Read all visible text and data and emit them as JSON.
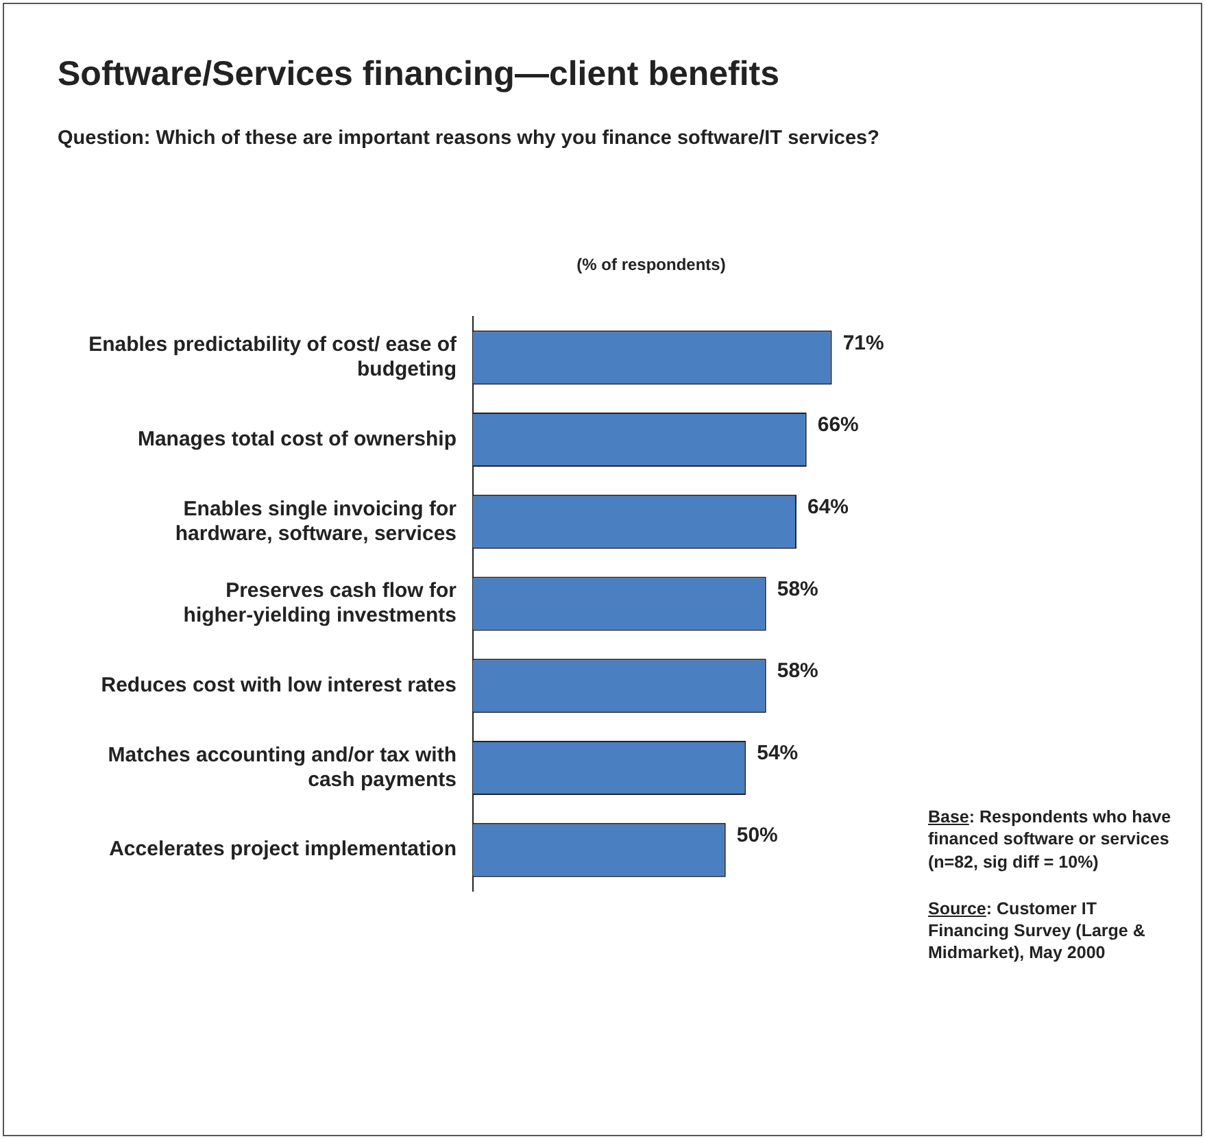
{
  "chart_data": {
    "type": "bar",
    "orientation": "horizontal",
    "title": "Software/Services financing—client benefits",
    "subtitle": "Question: Which of these are important reasons why you finance software/IT services?",
    "xlabel": "(% of respondents)",
    "categories": [
      "Enables predictability of cost/ ease of budgeting",
      "Manages total cost of ownership",
      "Enables single invoicing for hardware, software, services",
      "Preserves cash flow for higher-yielding investments",
      "Reduces cost with low interest rates",
      "Matches accounting and/or tax with cash payments",
      "Accelerates project implementation"
    ],
    "values": [
      71,
      66,
      64,
      58,
      58,
      54,
      50
    ],
    "value_labels": [
      "71%",
      "66%",
      "64%",
      "58%",
      "58%",
      "54%",
      "50%"
    ],
    "color": "#4a7fc1",
    "tick_labels": "y",
    "grid": false,
    "legend": false,
    "annotations": [
      "Base: Respondents who have financed software or services (n=82, sig diff = 10%)",
      "Source: Customer IT Financing Survey (Large & Midmarket), May 2000"
    ]
  }
}
